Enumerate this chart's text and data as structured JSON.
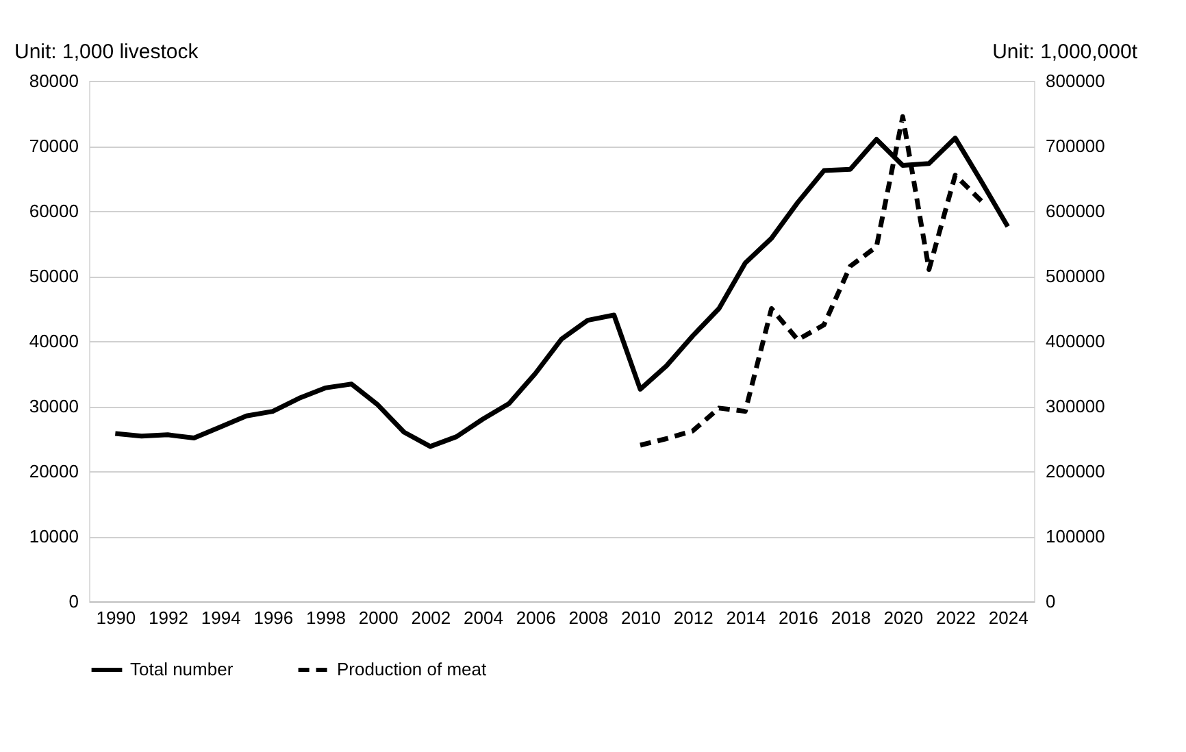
{
  "chart_data": {
    "type": "line",
    "ylabel": "Unit: 1,000 livestock",
    "y2label": "Unit: 1,000,000t",
    "x": [
      1990,
      1991,
      1992,
      1993,
      1994,
      1995,
      1996,
      1997,
      1998,
      1999,
      2000,
      2001,
      2002,
      2003,
      2004,
      2005,
      2006,
      2007,
      2008,
      2009,
      2010,
      2011,
      2012,
      2013,
      2014,
      2015,
      2016,
      2017,
      2018,
      2019,
      2020,
      2021,
      2022,
      2023,
      2024
    ],
    "series": [
      {
        "name": "Total number",
        "color": "#000000",
        "line_style": "solid",
        "values": [
          25800,
          25400,
          25600,
          25100,
          26800,
          28500,
          29200,
          31200,
          32800,
          33400,
          30200,
          26000,
          23800,
          25300,
          28000,
          30400,
          35000,
          40300,
          43200,
          44000,
          32600,
          36200,
          40800,
          45000,
          52000,
          55800,
          61300,
          66200,
          66400,
          71000,
          67000,
          67300,
          71200,
          64500,
          57600
        ]
      },
      {
        "name": "Production of meat",
        "color": "#000000",
        "line_style": "dashed",
        "axis": "y2",
        "values": [
          null,
          null,
          null,
          null,
          null,
          null,
          null,
          null,
          null,
          null,
          null,
          null,
          null,
          null,
          null,
          null,
          null,
          null,
          null,
          null,
          240000,
          250000,
          262000,
          297000,
          292000,
          450000,
          402000,
          425000,
          515000,
          545000,
          745000,
          510000,
          655000,
          615000,
          null
        ]
      }
    ],
    "xlim": [
      1989,
      2025
    ],
    "xticks": [
      1990,
      1992,
      1994,
      1996,
      1998,
      2000,
      2002,
      2004,
      2006,
      2008,
      2010,
      2012,
      2014,
      2016,
      2018,
      2020,
      2022,
      2024
    ],
    "ylim": [
      0,
      80000
    ],
    "yticks": [
      0,
      10000,
      20000,
      30000,
      40000,
      50000,
      60000,
      70000,
      80000
    ],
    "y2lim": [
      0,
      800000
    ],
    "y2ticks": [
      0,
      100000,
      200000,
      300000,
      400000,
      500000,
      600000,
      700000,
      800000
    ],
    "grid": "y",
    "legend": "bottom",
    "marker": "none"
  }
}
